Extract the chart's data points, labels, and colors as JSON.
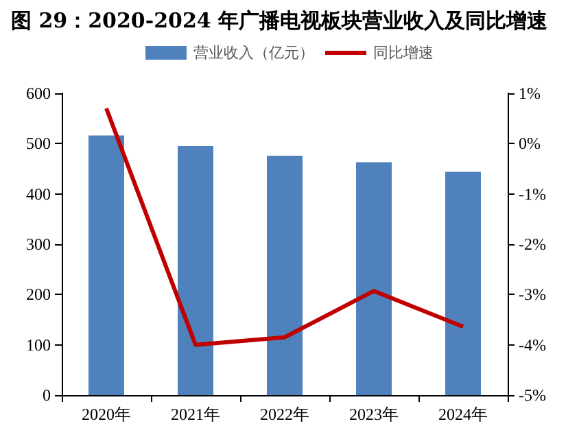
{
  "chart_data": {
    "type": "bar",
    "title": "图 29：2020-2024 年广播电视板块营业收入及同比增速",
    "categories": [
      "2020年",
      "2021年",
      "2022年",
      "2023年",
      "2024年"
    ],
    "series": [
      {
        "name": "营业收入（亿元）",
        "color": "#4f81bd",
        "values": [
          516,
          495,
          476,
          463,
          444
        ]
      },
      {
        "name": "同比增速",
        "type": "line",
        "axis": "y2",
        "color": "#c00000",
        "values": [
          0.7,
          -4.0,
          -3.85,
          -2.93,
          -3.64
        ]
      }
    ],
    "ylim": [
      0,
      600
    ],
    "yticks": [
      0,
      100,
      200,
      300,
      400,
      500,
      600
    ],
    "y2lim": [
      -5,
      1
    ],
    "y2ticks": [
      {
        "value": -5,
        "label": "-5%"
      },
      {
        "value": -4,
        "label": "-4%"
      },
      {
        "value": -3,
        "label": "-3%"
      },
      {
        "value": -2,
        "label": "-2%"
      },
      {
        "value": -1,
        "label": "-1%"
      },
      {
        "value": 0,
        "label": "0%"
      },
      {
        "value": 1,
        "label": "1%"
      }
    ],
    "grid": false,
    "legend": "top",
    "marker": "none"
  }
}
